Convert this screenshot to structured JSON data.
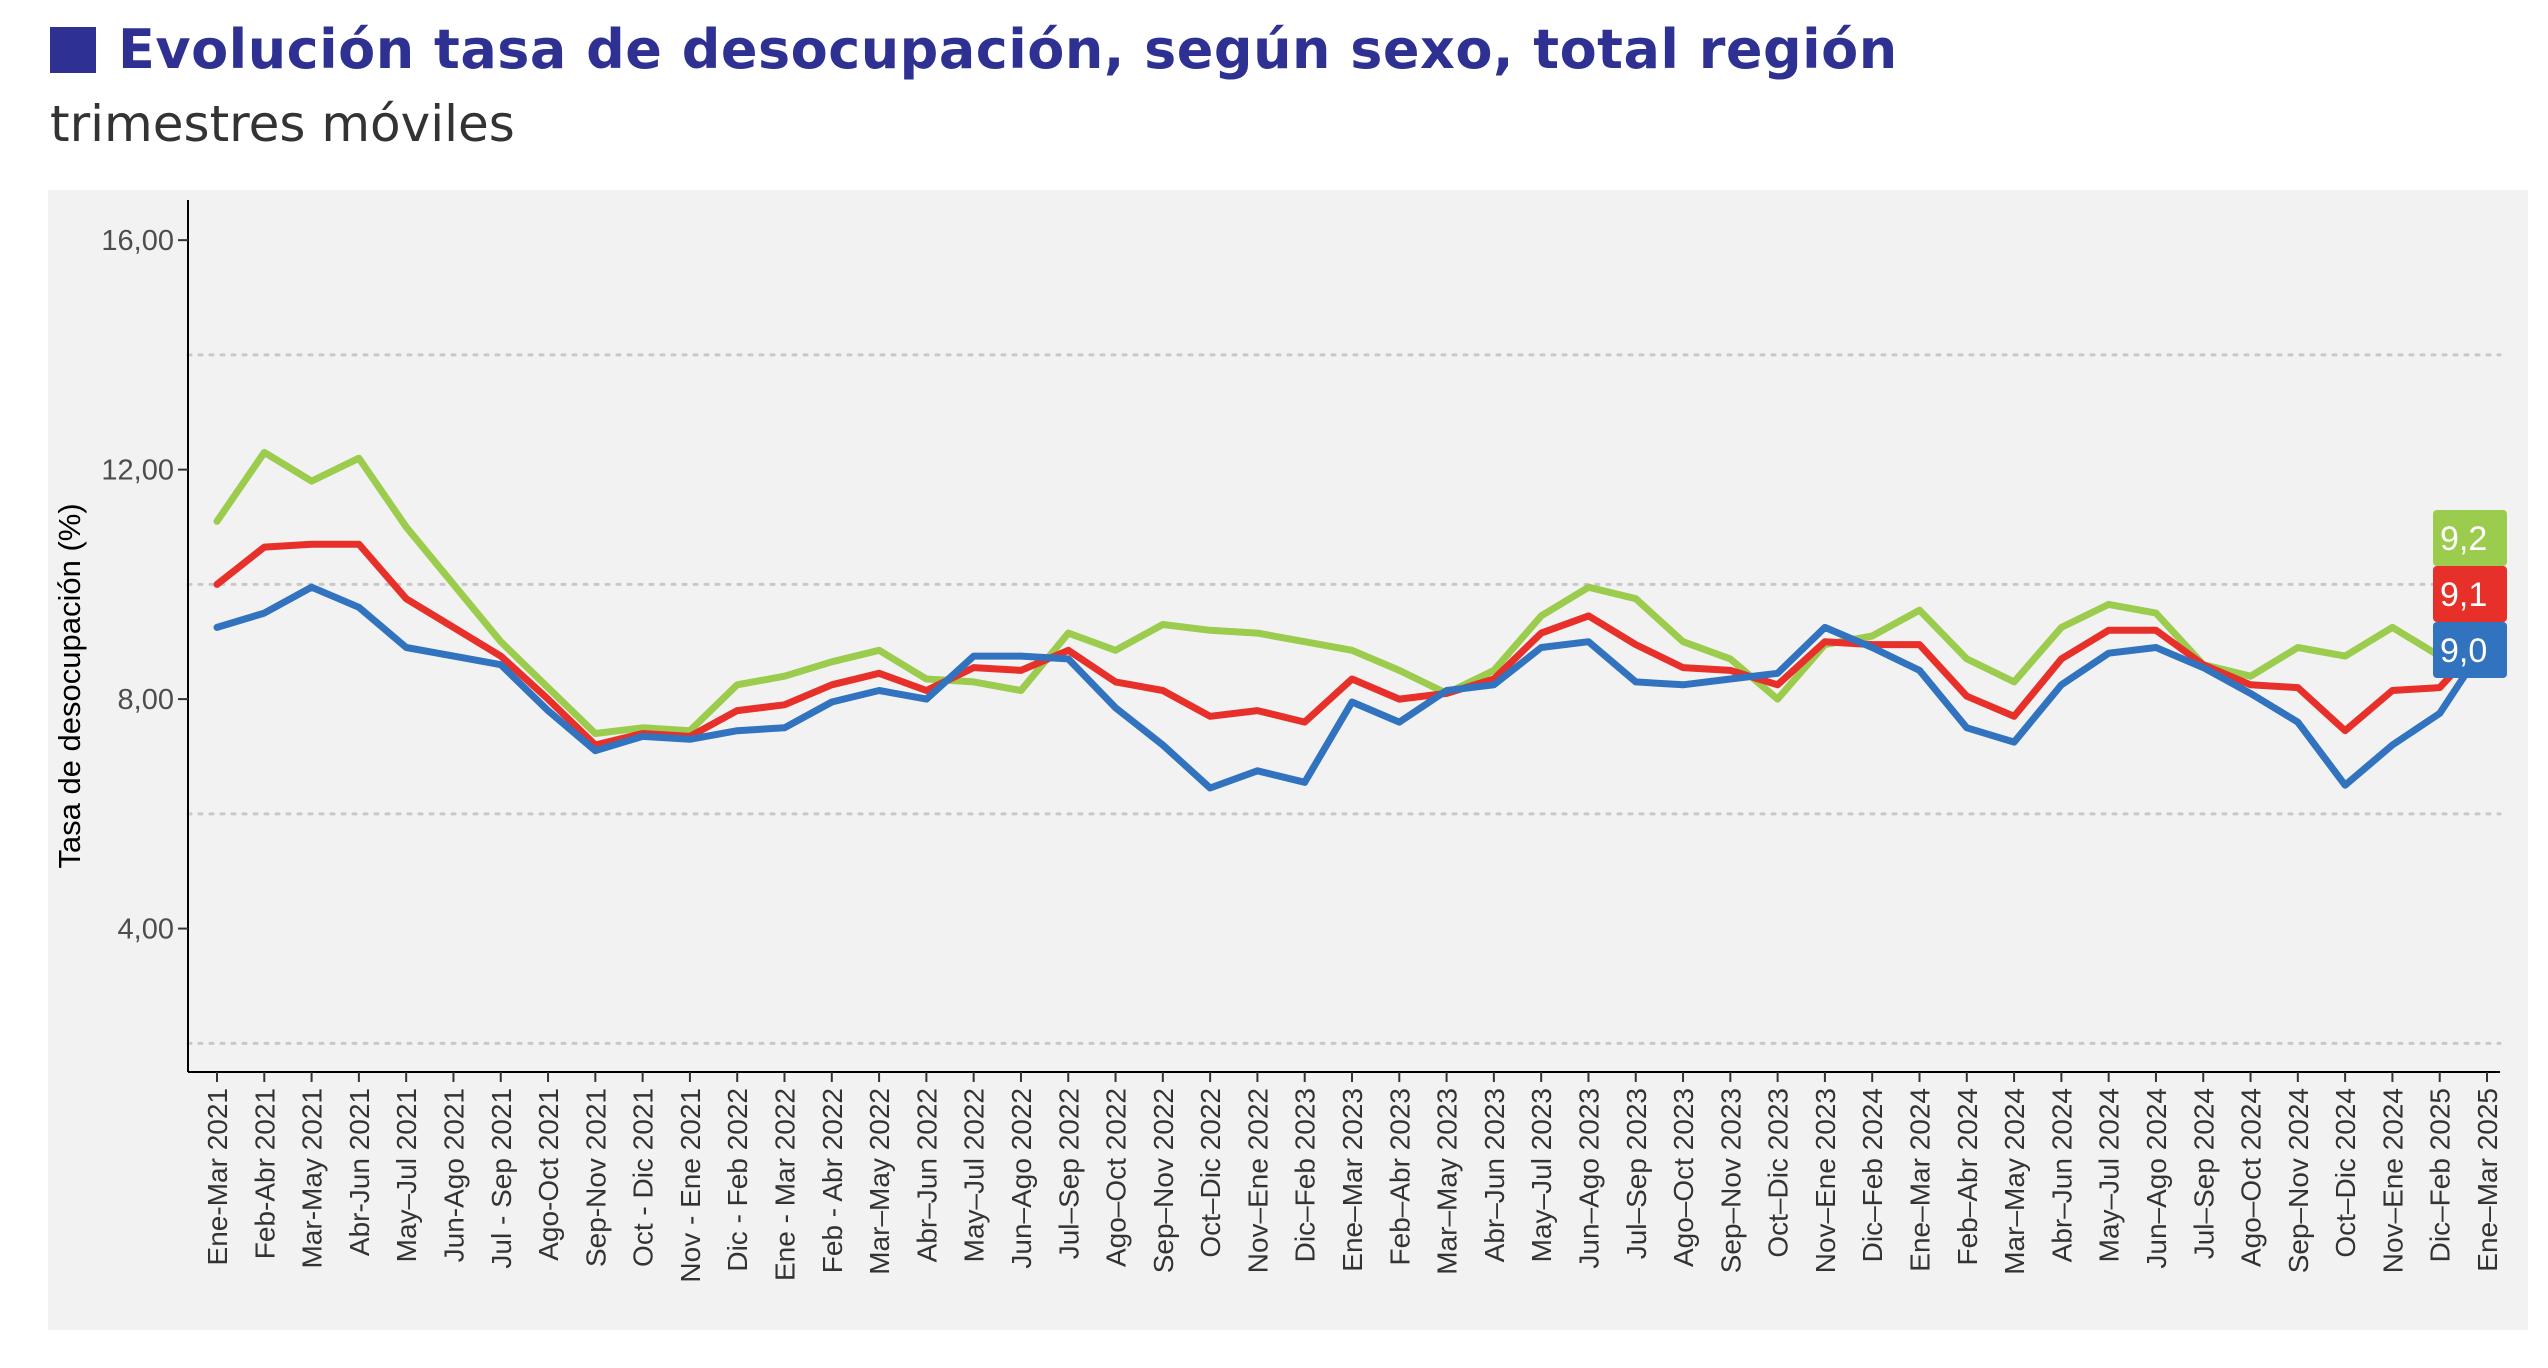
{
  "header": {
    "title": "Evolución tasa de desocupación, según sexo, total región",
    "subtitle": "trimestres móviles"
  },
  "colors": {
    "title": "#2e3192",
    "mujeres": "#9ccc4d",
    "total": "#e8302a",
    "hombres": "#3273c0",
    "panel_bg": "#f2f2f2",
    "grid": "#c8c8c8"
  },
  "chart_data": {
    "type": "line",
    "title": "Evolución tasa de desocupación, según sexo, total región",
    "subtitle": "trimestres móviles",
    "xlabel": "",
    "ylabel": "Tasa de desocupación (%)",
    "ylim": [
      1.5,
      16.7
    ],
    "yticks": [
      "4,00",
      "8,00",
      "12,00",
      "16,00"
    ],
    "ytick_values": [
      4,
      8,
      12,
      16
    ],
    "dotted_grid": [
      2,
      6,
      10,
      14
    ],
    "legend": "none",
    "categories": [
      "Ene-Mar 2021",
      "Feb-Abr 2021",
      "Mar-May 2021",
      "Abr-Jun 2021",
      "May–Jul 2021",
      "Jun-Ago 2021",
      "Jul - Sep 2021",
      "Ago-Oct 2021",
      "Sep-Nov 2021",
      "Oct - Dic 2021",
      "Nov - Ene 2021",
      "Dic - Feb 2022",
      "Ene - Mar 2022",
      "Feb - Abr 2022",
      "Mar–May 2022",
      "Abr–Jun 2022",
      "May–Jul 2022",
      "Jun–Ago 2022",
      "Jul–Sep 2022",
      "Ago–Oct 2022",
      "Sep–Nov 2022",
      "Oct–Dic 2022",
      "Nov–Ene 2022",
      "Dic–Feb 2023",
      "Ene–Mar 2023",
      "Feb–Abr 2023",
      "Mar–May 2023",
      "Abr–Jun 2023",
      "May–Jul 2023",
      "Jun–Ago 2023",
      "Jul–Sep 2023",
      "Ago–Oct 2023",
      "Sep–Nov 2023",
      "Oct–Dic 2023",
      "Nov–Ene 2023",
      "Dic–Feb 2024",
      "Ene–Mar 2024",
      "Feb–Abr 2024",
      "Mar–May 2024",
      "Abr–Jun 2024",
      "May–Jul 2024",
      "Jun–Ago 2024",
      "Jul–Sep 2024",
      "Ago–Oct 2024",
      "Sep–Nov 2024",
      "Oct–Dic 2024",
      "Nov–Ene 2024",
      "Dic–Feb 2025",
      "Ene–Mar 2025"
    ],
    "series": [
      {
        "color": "#9ccc4d",
        "end_label": "9,2",
        "values": [
          11.1,
          12.3,
          11.8,
          12.2,
          11.0,
          10.0,
          9.0,
          8.2,
          7.4,
          7.5,
          7.45,
          8.25,
          8.4,
          8.65,
          8.85,
          8.35,
          8.3,
          8.15,
          9.15,
          8.85,
          9.3,
          9.2,
          9.15,
          9.0,
          8.85,
          8.5,
          8.1,
          8.5,
          9.45,
          9.95,
          9.75,
          9.0,
          8.7,
          8.0,
          8.95,
          9.1,
          9.55,
          8.7,
          8.3,
          9.25,
          9.65,
          9.5,
          8.6,
          8.4,
          8.9,
          8.75,
          9.25,
          8.75,
          9.2
        ]
      },
      {
        "color": "#e8302a",
        "end_label": "9,1",
        "values": [
          10.0,
          10.65,
          10.7,
          10.7,
          9.75,
          9.25,
          8.75,
          8.0,
          7.2,
          7.4,
          7.35,
          7.8,
          7.9,
          8.25,
          8.45,
          8.15,
          8.55,
          8.5,
          8.85,
          8.3,
          8.15,
          7.7,
          7.8,
          7.6,
          8.35,
          8.0,
          8.1,
          8.35,
          9.15,
          9.45,
          8.95,
          8.55,
          8.5,
          8.25,
          9.0,
          8.95,
          8.95,
          8.05,
          7.7,
          8.7,
          9.2,
          9.2,
          8.6,
          8.25,
          8.2,
          7.45,
          8.15,
          8.2,
          9.1
        ]
      },
      {
        "color": "#3273c0",
        "end_label": "9,0",
        "values": [
          9.25,
          9.5,
          9.95,
          9.6,
          8.9,
          8.75,
          8.6,
          7.8,
          7.1,
          7.35,
          7.3,
          7.45,
          7.5,
          7.95,
          8.15,
          8.0,
          8.75,
          8.75,
          8.7,
          7.85,
          7.2,
          6.45,
          6.75,
          6.55,
          7.95,
          7.6,
          8.15,
          8.25,
          8.9,
          9.0,
          8.3,
          8.25,
          8.35,
          8.45,
          9.25,
          8.9,
          8.5,
          7.5,
          7.25,
          8.25,
          8.8,
          8.9,
          8.55,
          8.1,
          7.6,
          6.5,
          7.2,
          7.75,
          9.0
        ]
      }
    ]
  }
}
